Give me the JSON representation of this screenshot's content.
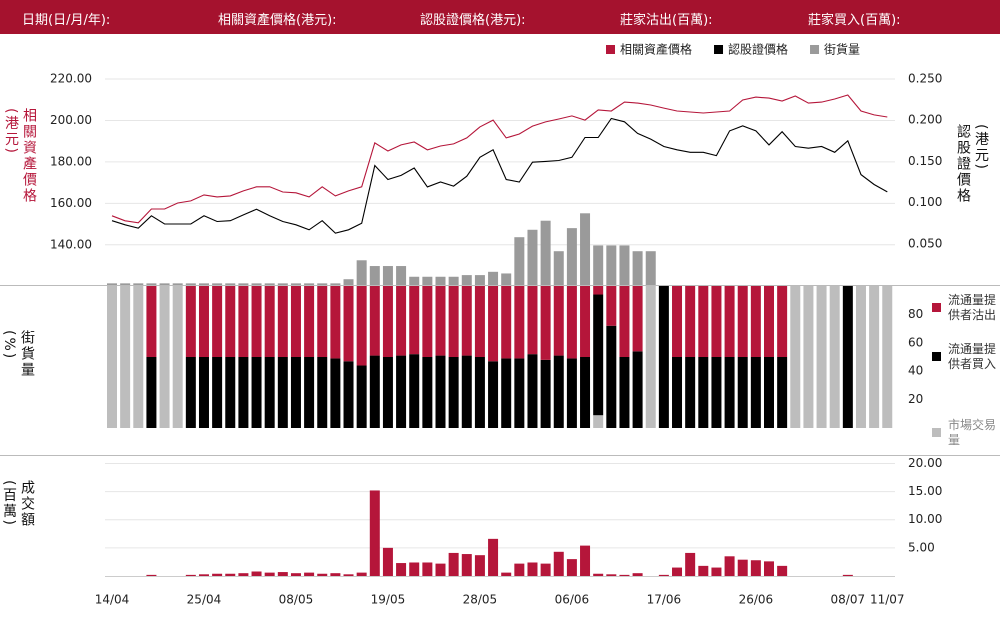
{
  "header": [
    "日期(日/月/年):",
    "相關資產價格(港元):",
    "認股證價格(港元):",
    "莊家沽出(百萬):",
    "莊家買入(百萬):"
  ],
  "chart_data": [
    {
      "type": "line",
      "ylabel": "相關資產價格(港元)",
      "y2label": "認股證價格(港元)",
      "ylim": [
        120.6,
        229.2
      ],
      "yticks": [
        {
          "value": 140,
          "label": "140.00"
        },
        {
          "value": 160,
          "label": "160.00"
        },
        {
          "value": 180,
          "label": "180.00"
        },
        {
          "value": 200,
          "label": "200.00"
        },
        {
          "value": 220,
          "label": "220.00"
        }
      ],
      "y2lim": [
        0,
        0.273
      ],
      "y2ticks": [
        {
          "value": 0.05,
          "label": "0.050"
        },
        {
          "value": 0.1,
          "label": "0.100"
        },
        {
          "value": 0.15,
          "label": "0.150"
        },
        {
          "value": 0.2,
          "label": "0.200"
        },
        {
          "value": 0.25,
          "label": "0.250"
        }
      ],
      "grid": true,
      "series": [
        {
          "name": "相關資產價格",
          "color": "#b5163a",
          "values": [
            154.0,
            151.6,
            150.6,
            157.3,
            157.3,
            160.2,
            161.2,
            164.1,
            163.1,
            163.6,
            166.0,
            168.0,
            168.0,
            165.5,
            165.1,
            163.1,
            168.0,
            163.6,
            166.0,
            168.0,
            189.2,
            185.3,
            188.2,
            189.6,
            185.8,
            187.7,
            188.7,
            191.6,
            196.9,
            200.2,
            191.6,
            193.5,
            197.3,
            199.3,
            200.7,
            202.2,
            200.2,
            205.1,
            204.6,
            208.9,
            208.4,
            207.5,
            206.0,
            204.6,
            204.1,
            203.6,
            204.1,
            204.6,
            209.9,
            211.3,
            210.8,
            209.4,
            211.8,
            208.4,
            208.9,
            210.4,
            212.3,
            204.6,
            202.7,
            201.7
          ]
        },
        {
          "name": "認股證價格",
          "color": "#000000",
          "axis": "y2",
          "values": [
            0.078,
            0.073,
            0.069,
            0.084,
            0.074,
            0.074,
            0.074,
            0.084,
            0.077,
            0.078,
            0.085,
            0.092,
            0.084,
            0.077,
            0.073,
            0.067,
            0.078,
            0.063,
            0.067,
            0.075,
            0.145,
            0.128,
            0.133,
            0.142,
            0.119,
            0.125,
            0.12,
            0.132,
            0.155,
            0.164,
            0.128,
            0.125,
            0.149,
            0.15,
            0.151,
            0.155,
            0.179,
            0.179,
            0.202,
            0.198,
            0.184,
            0.177,
            0.168,
            0.164,
            0.161,
            0.161,
            0.157,
            0.187,
            0.193,
            0.187,
            0.17,
            0.186,
            0.168,
            0.166,
            0.168,
            0.161,
            0.175,
            0.134,
            0.122,
            0.113
          ]
        },
        {
          "name": "街貨量",
          "color": "#9a9a9a",
          "type": "bar",
          "axis": "y2",
          "values": [
            0.002,
            0.002,
            0.002,
            0.002,
            0.002,
            0.002,
            0.002,
            0.002,
            0.002,
            0.002,
            0.002,
            0.002,
            0.002,
            0.002,
            0.002,
            0.002,
            0.002,
            0.002,
            0.007,
            0.03,
            0.023,
            0.023,
            0.023,
            0.01,
            0.01,
            0.01,
            0.01,
            0.012,
            0.012,
            0.016,
            0.014,
            0.058,
            0.067,
            0.078,
            0.041,
            0.069,
            0.087,
            0.048,
            0.048,
            0.048,
            0.041,
            0.041,
            0,
            0,
            0,
            0,
            0,
            0,
            0,
            0,
            0,
            0,
            0,
            0,
            0,
            0,
            0,
            0,
            0,
            0
          ]
        }
      ]
    },
    {
      "type": "bar",
      "stacked": true,
      "ylabel": "街貨量(%)",
      "ylim": [
        0,
        100
      ],
      "yticks": [
        20,
        40,
        60,
        80
      ],
      "series": [
        {
          "name": "流通量提供者沽出",
          "color": "#b5163a",
          "values": [
            0,
            0,
            0,
            50,
            0,
            0,
            50,
            50,
            50,
            50,
            50,
            50,
            50,
            50,
            50,
            50,
            50,
            51,
            53,
            56,
            49,
            50,
            49,
            48,
            50,
            49,
            50,
            49,
            50,
            53,
            51,
            51,
            48,
            52,
            49,
            51,
            50,
            6,
            28,
            50,
            46,
            0,
            0,
            50,
            50,
            50,
            50,
            50,
            50,
            50,
            50,
            50,
            0,
            0,
            0,
            0,
            0,
            0,
            0,
            0
          ]
        },
        {
          "name": "流通量提供者買入",
          "color": "#000000",
          "values": [
            0,
            0,
            0,
            50,
            0,
            0,
            50,
            50,
            50,
            50,
            50,
            50,
            50,
            50,
            50,
            50,
            50,
            49,
            47,
            44,
            51,
            50,
            51,
            52,
            50,
            51,
            50,
            51,
            50,
            47,
            49,
            49,
            52,
            48,
            51,
            49,
            50,
            85,
            72,
            50,
            54,
            0,
            100,
            50,
            50,
            50,
            50,
            50,
            50,
            50,
            50,
            50,
            0,
            0,
            0,
            0,
            100,
            0,
            0,
            0
          ]
        },
        {
          "name": "市場交易量",
          "color": "#bdbdbd",
          "values": [
            100,
            100,
            100,
            0,
            100,
            100,
            0,
            0,
            0,
            0,
            0,
            0,
            0,
            0,
            0,
            0,
            0,
            0,
            0,
            0,
            0,
            0,
            0,
            0,
            0,
            0,
            0,
            0,
            0,
            0,
            0,
            0,
            0,
            0,
            0,
            0,
            0,
            9,
            0,
            0,
            0,
            100,
            0,
            0,
            0,
            0,
            0,
            0,
            0,
            0,
            0,
            0,
            100,
            100,
            100,
            100,
            0,
            100,
            100,
            100
          ]
        }
      ]
    },
    {
      "type": "bar",
      "ylabel": "成交額(百萬)",
      "ylim": [
        0,
        21.5
      ],
      "grid": true,
      "color": "#b5163a",
      "yticks": [
        {
          "value": 5,
          "label": "5.00"
        },
        {
          "value": 10,
          "label": "10.00"
        },
        {
          "value": 15,
          "label": "15.00"
        },
        {
          "value": 20,
          "label": "20.00"
        }
      ],
      "categories": [
        "14/04",
        null,
        null,
        null,
        null,
        null,
        null,
        "25/04",
        null,
        null,
        null,
        null,
        null,
        null,
        "08/05",
        null,
        null,
        null,
        null,
        null,
        null,
        "19/05",
        null,
        null,
        null,
        null,
        null,
        null,
        "28/05",
        null,
        null,
        null,
        null,
        null,
        null,
        "06/06",
        null,
        null,
        null,
        null,
        null,
        null,
        "17/06",
        null,
        null,
        null,
        null,
        null,
        null,
        "26/06",
        null,
        null,
        null,
        null,
        null,
        null,
        "08/07",
        null,
        null,
        "11/07"
      ],
      "values": [
        0,
        0,
        0,
        0.2,
        0,
        0,
        0.2,
        0.3,
        0.4,
        0.4,
        0.5,
        0.8,
        0.6,
        0.7,
        0.5,
        0.6,
        0.4,
        0.5,
        0.3,
        0.6,
        15.2,
        5.0,
        2.3,
        2.4,
        2.4,
        2.2,
        4.1,
        3.9,
        3.7,
        6.6,
        0.6,
        2.2,
        2.4,
        2.2,
        4.3,
        3.0,
        5.4,
        0.4,
        0.3,
        0.2,
        0.5,
        0,
        0.2,
        1.5,
        4.1,
        1.8,
        1.5,
        3.5,
        2.9,
        2.8,
        2.6,
        1.8,
        0,
        0,
        0,
        0,
        0.2,
        0,
        0,
        0
      ]
    }
  ]
}
